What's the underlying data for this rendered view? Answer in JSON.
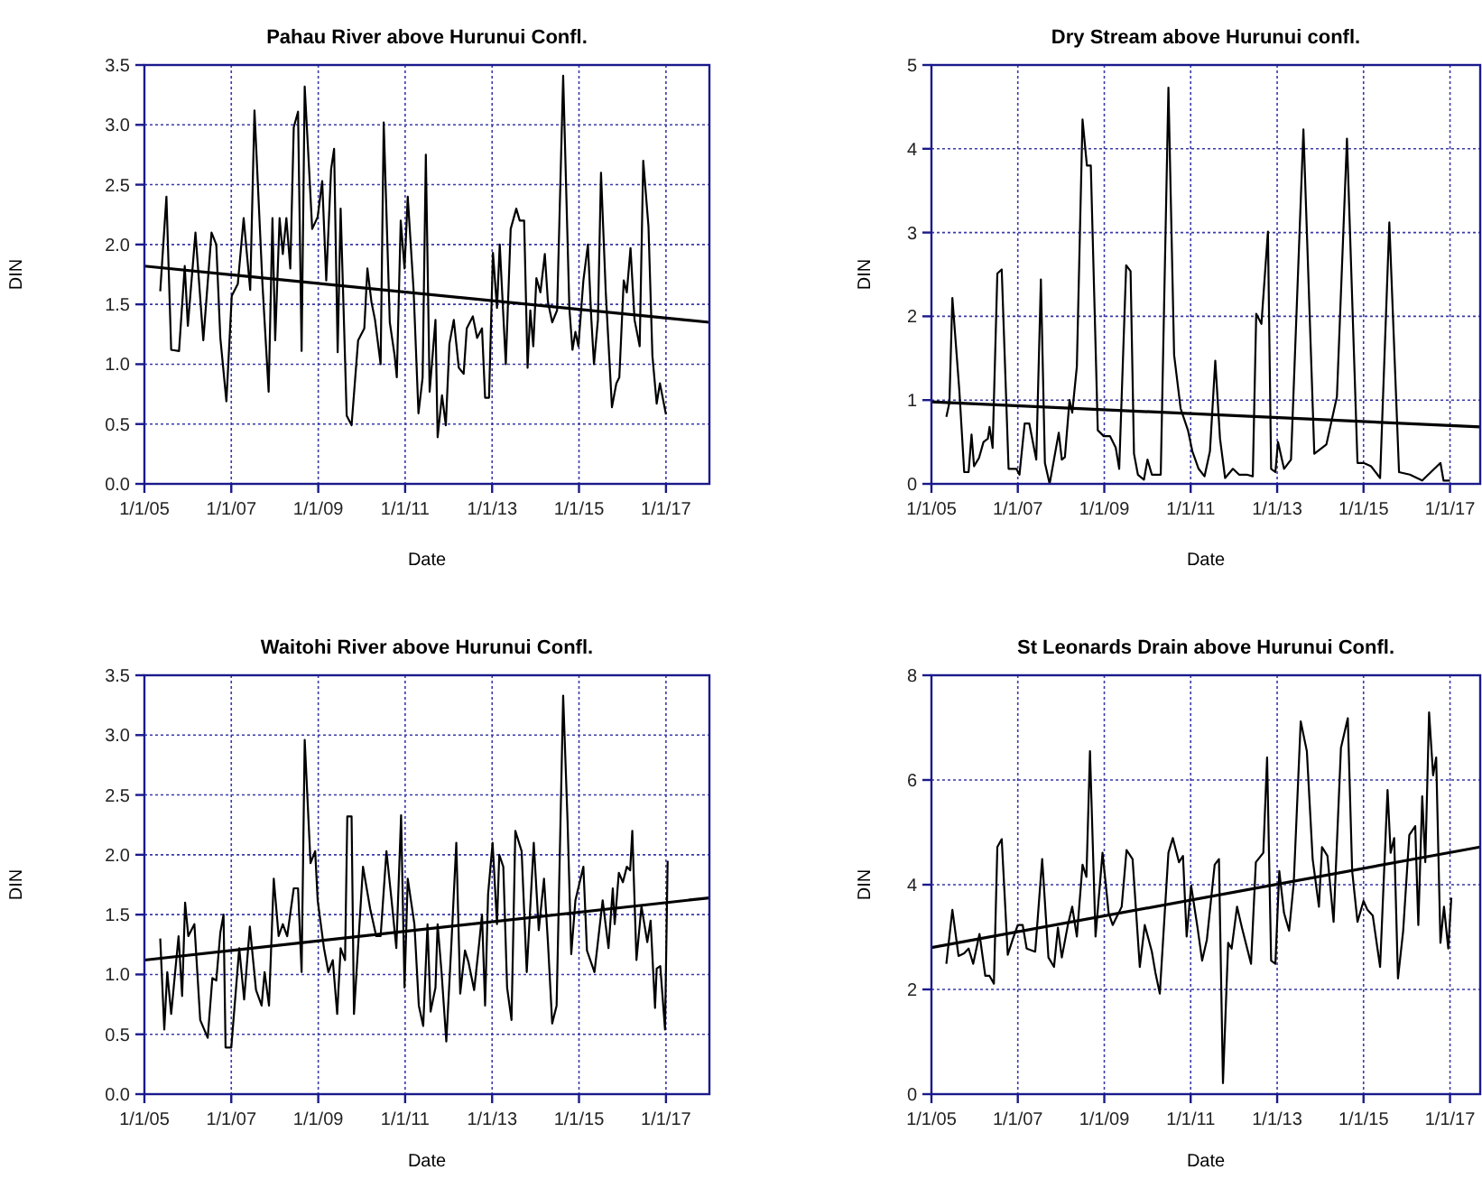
{
  "chart_data": [
    {
      "type": "line",
      "title": "Pahau River above Hurunui Confl.",
      "xlabel": "Date",
      "ylabel": "DIN",
      "xlim": [
        "2005-01-01",
        "2018-01-01"
      ],
      "ylim": [
        0,
        3.5
      ],
      "grid": true,
      "xticks": [
        {
          "value": "2005-01-01",
          "label": "1/1/05"
        },
        {
          "value": "2007-01-01",
          "label": "1/1/07"
        },
        {
          "value": "2009-01-01",
          "label": "1/1/09"
        },
        {
          "value": "2011-01-01",
          "label": "1/1/11"
        },
        {
          "value": "2013-01-01",
          "label": "1/1/13"
        },
        {
          "value": "2015-01-01",
          "label": "1/1/15"
        },
        {
          "value": "2017-01-01",
          "label": "1/1/17"
        }
      ],
      "yticks": [
        {
          "value": 0,
          "label": "0.0"
        },
        {
          "value": 0.5,
          "label": "0.5"
        },
        {
          "value": 1,
          "label": "1.0"
        },
        {
          "value": 1.5,
          "label": "1.5"
        },
        {
          "value": 2,
          "label": "2.0"
        },
        {
          "value": 2.5,
          "label": "2.5"
        },
        {
          "value": 3,
          "label": "3.0"
        },
        {
          "value": 3.5,
          "label": "3.5"
        }
      ],
      "series": [
        {
          "color": "#000000",
          "x": [
            "2005-05-14",
            "2005-07-05",
            "2005-08-14",
            "2005-10-19",
            "2005-12-06",
            "2006-01-01",
            "2006-03-06",
            "2006-05-11",
            "2006-07-19",
            "2006-08-28",
            "2006-10-01",
            "2006-11-21",
            "2007-01-05",
            "2007-02-25",
            "2007-04-15",
            "2007-06-09",
            "2007-07-15",
            "2007-09-20",
            "2007-11-11",
            "2007-12-13",
            "2008-01-05",
            "2008-02-11",
            "2008-03-09",
            "2008-04-08",
            "2008-05-11",
            "2008-06-09",
            "2008-07-15",
            "2008-08-14",
            "2008-09-09",
            "2008-10-08",
            "2008-11-11",
            "2008-12-27",
            "2009-02-03",
            "2009-03-09",
            "2009-04-19",
            "2009-05-14",
            "2009-06-13",
            "2009-07-08",
            "2009-08-28",
            "2009-10-08",
            "2009-12-02",
            "2010-01-23",
            "2010-02-18",
            "2010-03-24",
            "2010-04-23",
            "2010-06-09",
            "2010-07-05",
            "2010-08-25",
            "2010-10-05",
            "2010-10-23",
            "2010-11-25",
            "2010-12-27",
            "2011-01-23",
            "2011-03-13",
            "2011-04-23",
            "2011-05-28",
            "2011-06-24",
            "2011-07-26",
            "2011-09-13",
            "2011-10-01",
            "2011-11-07",
            "2011-12-09",
            "2012-01-08",
            "2012-02-14",
            "2012-03-27",
            "2012-05-07",
            "2012-06-02",
            "2012-07-23",
            "2012-08-28",
            "2012-10-08",
            "2012-11-03",
            "2012-12-06",
            "2013-01-08",
            "2013-02-11",
            "2013-03-06",
            "2013-04-26",
            "2013-06-06",
            "2013-07-23",
            "2013-08-21",
            "2013-09-27",
            "2013-10-26",
            "2013-11-18",
            "2013-12-13",
            "2014-01-08",
            "2014-02-11",
            "2014-03-20",
            "2014-04-15",
            "2014-05-21",
            "2014-07-01",
            "2014-08-21",
            "2014-10-12",
            "2014-11-07",
            "2014-12-02",
            "2014-12-27",
            "2015-02-07",
            "2015-03-17",
            "2015-04-15",
            "2015-05-07",
            "2015-06-09",
            "2015-07-05",
            "2015-08-14",
            "2015-10-05",
            "2015-11-11",
            "2015-12-06",
            "2016-01-12",
            "2016-02-07",
            "2016-03-09",
            "2016-04-12",
            "2016-05-25",
            "2016-06-24",
            "2016-08-07",
            "2016-09-09",
            "2016-10-15",
            "2016-11-11",
            "2017-01-01"
          ],
          "values": [
            1.61,
            2.4,
            1.12,
            1.11,
            1.82,
            1.32,
            2.1,
            1.2,
            2.1,
            2.0,
            1.22,
            0.69,
            1.57,
            1.67,
            2.22,
            1.62,
            3.12,
            1.67,
            0.77,
            2.22,
            1.2,
            2.22,
            1.92,
            2.22,
            1.8,
            2.98,
            3.11,
            1.11,
            3.32,
            2.78,
            2.13,
            2.23,
            2.53,
            1.7,
            2.63,
            2.8,
            1.1,
            2.3,
            0.57,
            0.49,
            1.2,
            1.3,
            1.8,
            1.52,
            1.37,
            1.0,
            3.02,
            1.35,
            1.07,
            0.89,
            2.2,
            1.8,
            2.4,
            1.62,
            0.59,
            0.89,
            2.75,
            0.77,
            1.37,
            0.39,
            0.74,
            0.49,
            1.17,
            1.37,
            0.97,
            0.92,
            1.3,
            1.4,
            1.22,
            1.3,
            0.72,
            0.72,
            1.93,
            1.47,
            2.0,
            1.0,
            2.13,
            2.3,
            2.2,
            2.2,
            0.97,
            1.45,
            1.15,
            1.72,
            1.6,
            1.92,
            1.52,
            1.35,
            1.45,
            3.41,
            1.47,
            1.12,
            1.27,
            1.15,
            1.7,
            2.0,
            1.37,
            1.0,
            1.37,
            2.6,
            1.6,
            0.64,
            0.84,
            0.89,
            1.7,
            1.6,
            1.97,
            1.37,
            1.15,
            2.7,
            2.15,
            1.07,
            0.67,
            0.84,
            0.58
          ]
        },
        {
          "type": "line",
          "color": "#000000",
          "x": [
            "2005-01-01",
            "2018-01-01"
          ],
          "values": [
            1.82,
            1.35
          ]
        }
      ]
    },
    {
      "type": "line",
      "title": "Dry Stream above Hurunui confl.",
      "xlabel": "Date",
      "ylabel": "DIN",
      "xlim": [
        "2005-01-01",
        "2017-09-13"
      ],
      "ylim": [
        0,
        5
      ],
      "grid": true,
      "xticks": [
        {
          "value": "2005-01-01",
          "label": "1/1/05"
        },
        {
          "value": "2007-01-01",
          "label": "1/1/07"
        },
        {
          "value": "2009-01-01",
          "label": "1/1/09"
        },
        {
          "value": "2011-01-01",
          "label": "1/1/11"
        },
        {
          "value": "2013-01-01",
          "label": "1/1/13"
        },
        {
          "value": "2015-01-01",
          "label": "1/1/15"
        },
        {
          "value": "2017-01-01",
          "label": "1/1/17"
        }
      ],
      "yticks": [
        0,
        1,
        2,
        3,
        4,
        5
      ],
      "series": [
        {
          "color": "#000000",
          "x": [
            "2005-05-07",
            "2005-06-02",
            "2005-06-27",
            "2005-08-25",
            "2005-10-05",
            "2005-11-11",
            "2005-12-06",
            "2005-12-27",
            "2006-02-07",
            "2006-03-17",
            "2006-04-23",
            "2006-05-07",
            "2006-06-02",
            "2006-07-12",
            "2006-08-18",
            "2006-10-15",
            "2006-12-20",
            "2007-01-15",
            "2007-02-28",
            "2007-04-08",
            "2007-06-06",
            "2007-07-15",
            "2007-08-18",
            "2007-09-27",
            "2007-12-13",
            "2008-01-08",
            "2008-02-03",
            "2008-03-13",
            "2008-04-05",
            "2008-05-14",
            "2008-07-01",
            "2008-08-07",
            "2008-09-09",
            "2008-11-07",
            "2008-12-27",
            "2009-02-18",
            "2009-04-08",
            "2009-05-07",
            "2009-07-05",
            "2009-08-11",
            "2009-09-09",
            "2009-10-12",
            "2009-12-02",
            "2010-01-01",
            "2010-02-07",
            "2010-03-27",
            "2010-04-23",
            "2010-06-27",
            "2010-08-14",
            "2010-10-08",
            "2010-12-09",
            "2011-01-15",
            "2011-03-09",
            "2011-04-28",
            "2011-06-13",
            "2011-07-28",
            "2011-09-06",
            "2011-10-19",
            "2011-12-24",
            "2012-02-14",
            "2012-04-19",
            "2012-06-09",
            "2012-07-08",
            "2012-08-21",
            "2012-10-15",
            "2012-11-11",
            "2012-12-17",
            "2013-01-08",
            "2013-02-28",
            "2013-04-28",
            "2013-08-11",
            "2013-11-11",
            "2014-02-21",
            "2014-05-21",
            "2014-08-14",
            "2014-11-11",
            "2015-01-01",
            "2015-03-06",
            "2015-05-21",
            "2015-08-07",
            "2015-10-28",
            "2016-01-28",
            "2016-05-11",
            "2016-10-12",
            "2016-11-07",
            "2017-01-01"
          ],
          "values": [
            0.8,
            0.97,
            2.22,
            1.11,
            0.14,
            0.14,
            0.59,
            0.21,
            0.31,
            0.5,
            0.54,
            0.68,
            0.43,
            2.51,
            2.56,
            0.18,
            0.18,
            0.11,
            0.72,
            0.72,
            0.29,
            2.44,
            0.25,
            0.0,
            0.61,
            0.29,
            0.32,
            1.0,
            0.85,
            1.4,
            4.35,
            3.8,
            3.8,
            0.64,
            0.57,
            0.57,
            0.43,
            0.18,
            2.61,
            2.54,
            0.36,
            0.11,
            0.05,
            0.29,
            0.11,
            0.11,
            0.11,
            4.73,
            1.54,
            0.9,
            0.64,
            0.39,
            0.18,
            0.09,
            0.39,
            1.47,
            0.54,
            0.07,
            0.18,
            0.11,
            0.11,
            0.09,
            2.03,
            1.91,
            3.01,
            0.18,
            0.14,
            0.5,
            0.18,
            0.29,
            4.23,
            0.36,
            0.47,
            1.04,
            4.12,
            0.25,
            0.25,
            0.21,
            0.07,
            3.12,
            0.14,
            0.11,
            0.04,
            0.25,
            0.04,
            0.04
          ]
        },
        {
          "type": "line",
          "color": "#000000",
          "x": [
            "2005-01-01",
            "2017-09-13"
          ],
          "values": [
            0.98,
            0.68
          ]
        }
      ]
    },
    {
      "type": "line",
      "title": "Waitohi River above Hurunui Confl.",
      "xlabel": "Date",
      "ylabel": "DIN",
      "xlim": [
        "2005-01-01",
        "2018-01-01"
      ],
      "ylim": [
        0,
        3.5
      ],
      "grid": true,
      "xticks": [
        {
          "value": "2005-01-01",
          "label": "1/1/05"
        },
        {
          "value": "2007-01-01",
          "label": "1/1/07"
        },
        {
          "value": "2009-01-01",
          "label": "1/1/09"
        },
        {
          "value": "2011-01-01",
          "label": "1/1/11"
        },
        {
          "value": "2013-01-01",
          "label": "1/1/13"
        },
        {
          "value": "2015-01-01",
          "label": "1/1/15"
        },
        {
          "value": "2017-01-01",
          "label": "1/1/17"
        }
      ],
      "yticks": [
        {
          "value": 0,
          "label": "0.0"
        },
        {
          "value": 0.5,
          "label": "0.5"
        },
        {
          "value": 1,
          "label": "1.0"
        },
        {
          "value": 1.5,
          "label": "1.5"
        },
        {
          "value": 2,
          "label": "2.0"
        },
        {
          "value": 2.5,
          "label": "2.5"
        },
        {
          "value": 3,
          "label": "3.0"
        },
        {
          "value": 3.5,
          "label": "3.5"
        }
      ],
      "series": [
        {
          "color": "#000000",
          "x": [
            "2005-05-14",
            "2005-06-17",
            "2005-07-12",
            "2005-08-14",
            "2005-10-15",
            "2005-11-14",
            "2005-12-09",
            "2006-01-05",
            "2006-02-25",
            "2006-04-15",
            "2006-06-17",
            "2006-07-26",
            "2006-08-28",
            "2006-10-01",
            "2006-10-28",
            "2006-11-14",
            "2007-01-01",
            "2007-03-09",
            "2007-04-19",
            "2007-06-06",
            "2007-07-28",
            "2007-09-13",
            "2007-10-08",
            "2007-11-14",
            "2007-12-24",
            "2008-02-03",
            "2008-03-09",
            "2008-04-15",
            "2008-06-09",
            "2008-07-15",
            "2008-08-14",
            "2008-09-09",
            "2008-10-28",
            "2008-12-06",
            "2008-12-27",
            "2009-02-18",
            "2009-03-27",
            "2009-05-03",
            "2009-06-09",
            "2009-07-08",
            "2009-08-14",
            "2009-09-02",
            "2009-10-08",
            "2009-10-28",
            "2010-01-12",
            "2010-03-13",
            "2010-05-03",
            "2010-06-09",
            "2010-07-28",
            "2010-09-09",
            "2010-10-19",
            "2010-11-28",
            "2010-12-27",
            "2011-01-23",
            "2011-03-20",
            "2011-04-26",
            "2011-06-02",
            "2011-07-08",
            "2011-08-03",
            "2011-09-13",
            "2011-10-01",
            "2011-11-03",
            "2011-12-13",
            "2012-01-23",
            "2012-03-06",
            "2012-04-08",
            "2012-05-18",
            "2012-06-17",
            "2012-08-03",
            "2012-09-13",
            "2012-10-08",
            "2012-11-03",
            "2012-11-28",
            "2013-01-05",
            "2013-02-11",
            "2013-03-02",
            "2013-04-05",
            "2013-05-07",
            "2013-06-13",
            "2013-07-15",
            "2013-09-06",
            "2013-10-19",
            "2013-12-17",
            "2014-01-28",
            "2014-03-13",
            "2014-04-15",
            "2014-05-21",
            "2014-06-27",
            "2014-08-21",
            "2014-09-27",
            "2014-10-28",
            "2014-12-02",
            "2015-02-07",
            "2015-03-09",
            "2015-05-11",
            "2015-07-19",
            "2015-09-06",
            "2015-10-12",
            "2015-10-28",
            "2015-12-02",
            "2016-01-05",
            "2016-02-07",
            "2016-03-06",
            "2016-03-24",
            "2016-04-28",
            "2016-06-09",
            "2016-07-28",
            "2016-08-25",
            "2016-10-01",
            "2016-10-15",
            "2016-11-14",
            "2016-12-24",
            "2017-01-15"
          ],
          "values": [
            1.3,
            0.54,
            1.02,
            0.67,
            1.32,
            0.82,
            1.6,
            1.32,
            1.42,
            0.62,
            0.47,
            0.97,
            0.95,
            1.35,
            1.5,
            0.39,
            0.39,
            1.22,
            0.79,
            1.4,
            0.87,
            0.74,
            1.02,
            0.74,
            1.8,
            1.32,
            1.42,
            1.32,
            1.72,
            1.72,
            1.02,
            2.96,
            1.93,
            2.03,
            1.62,
            1.22,
            1.02,
            1.12,
            0.67,
            1.22,
            1.12,
            2.32,
            2.32,
            0.67,
            1.9,
            1.55,
            1.32,
            1.32,
            2.03,
            1.62,
            1.22,
            2.33,
            0.89,
            1.8,
            1.42,
            0.74,
            0.57,
            1.42,
            0.69,
            0.89,
            1.42,
            1.02,
            0.44,
            1.22,
            2.1,
            0.84,
            1.2,
            1.1,
            0.87,
            1.25,
            1.5,
            0.74,
            1.67,
            2.1,
            1.42,
            2.0,
            1.9,
            0.89,
            0.62,
            2.2,
            2.03,
            1.02,
            2.1,
            1.37,
            1.8,
            1.27,
            0.59,
            0.74,
            3.33,
            2.28,
            1.17,
            1.62,
            1.9,
            1.2,
            1.02,
            1.62,
            1.22,
            1.72,
            1.42,
            1.85,
            1.77,
            1.9,
            1.87,
            2.2,
            1.12,
            1.57,
            1.27,
            1.45,
            0.72,
            1.05,
            1.07,
            0.54,
            1.95
          ]
        },
        {
          "type": "line",
          "color": "#000000",
          "x": [
            "2005-01-01",
            "2018-01-01"
          ],
          "values": [
            1.12,
            1.64
          ]
        }
      ]
    },
    {
      "type": "line",
      "title": "St Leonards Drain above Hurunui Confl.",
      "xlabel": "Date",
      "ylabel": "DIN",
      "xlim": [
        "2005-01-01",
        "2017-09-13"
      ],
      "ylim": [
        0,
        8
      ],
      "grid": true,
      "xticks": [
        {
          "value": "2005-01-01",
          "label": "1/1/05"
        },
        {
          "value": "2007-01-01",
          "label": "1/1/07"
        },
        {
          "value": "2009-01-01",
          "label": "1/1/09"
        },
        {
          "value": "2011-01-01",
          "label": "1/1/11"
        },
        {
          "value": "2013-01-01",
          "label": "1/1/13"
        },
        {
          "value": "2015-01-01",
          "label": "1/1/15"
        },
        {
          "value": "2017-01-01",
          "label": "1/1/17"
        }
      ],
      "yticks": [
        0,
        2,
        4,
        6,
        8
      ],
      "series": [
        {
          "color": "#000000",
          "x": [
            "2005-05-07",
            "2005-06-27",
            "2005-08-18",
            "2005-10-05",
            "2005-11-11",
            "2005-12-20",
            "2006-02-11",
            "2006-04-01",
            "2006-05-07",
            "2006-06-13",
            "2006-07-12",
            "2006-08-18",
            "2006-10-08",
            "2006-11-18",
            "2007-01-01",
            "2007-02-11",
            "2007-03-17",
            "2007-05-28",
            "2007-07-26",
            "2007-09-17",
            "2007-11-03",
            "2007-12-06",
            "2008-01-08",
            "2008-02-28",
            "2008-04-05",
            "2008-05-14",
            "2008-07-01",
            "2008-08-03",
            "2008-09-02",
            "2008-10-19",
            "2008-12-17",
            "2009-02-07",
            "2009-03-13",
            "2009-05-28",
            "2009-07-08",
            "2009-08-28",
            "2009-10-28",
            "2009-12-09",
            "2010-02-07",
            "2010-03-09",
            "2010-04-15",
            "2010-06-27",
            "2010-08-03",
            "2010-09-24",
            "2010-10-28",
            "2010-11-28",
            "2011-01-05",
            "2011-02-28",
            "2011-04-08",
            "2011-05-18",
            "2011-07-23",
            "2011-08-28",
            "2011-10-01",
            "2011-11-14",
            "2011-12-13",
            "2012-01-28",
            "2012-03-09",
            "2012-05-25",
            "2012-07-05",
            "2012-09-06",
            "2012-10-08",
            "2012-11-11",
            "2012-12-17",
            "2013-01-19",
            "2013-02-28",
            "2013-04-12",
            "2013-05-21",
            "2013-07-19",
            "2013-09-09",
            "2013-10-28",
            "2013-12-20",
            "2014-01-15",
            "2014-03-02",
            "2014-04-23",
            "2014-06-24",
            "2014-08-21",
            "2014-09-27",
            "2014-11-11",
            "2015-01-01",
            "2015-02-03",
            "2015-03-20",
            "2015-05-21",
            "2015-07-23",
            "2015-08-18",
            "2015-09-17",
            "2015-10-19",
            "2015-12-02",
            "2016-01-23",
            "2016-03-13",
            "2016-04-08",
            "2016-05-11",
            "2016-06-06",
            "2016-07-08",
            "2016-08-11",
            "2016-09-06",
            "2016-10-12",
            "2016-11-11",
            "2016-12-17",
            "2017-01-12"
          ],
          "values": [
            2.49,
            3.52,
            2.64,
            2.69,
            2.78,
            2.49,
            3.06,
            2.26,
            2.26,
            2.11,
            4.72,
            4.87,
            2.66,
            2.95,
            3.23,
            3.23,
            2.78,
            2.72,
            4.49,
            2.61,
            2.43,
            3.18,
            2.61,
            3.23,
            3.58,
            3.01,
            4.38,
            4.15,
            6.55,
            3.01,
            4.61,
            3.46,
            3.23,
            3.58,
            4.66,
            4.49,
            2.43,
            3.23,
            2.72,
            2.32,
            1.92,
            4.61,
            4.89,
            4.43,
            4.55,
            3.01,
            3.98,
            3.18,
            2.55,
            2.95,
            4.38,
            4.49,
            0.21,
            2.89,
            2.78,
            3.58,
            3.18,
            2.49,
            4.43,
            4.61,
            6.43,
            2.55,
            2.49,
            4.26,
            3.46,
            3.12,
            4.03,
            7.12,
            6.55,
            4.49,
            3.58,
            4.72,
            4.55,
            3.29,
            6.61,
            7.18,
            4.26,
            3.29,
            3.69,
            3.52,
            3.41,
            2.43,
            5.81,
            4.61,
            4.89,
            2.21,
            3.12,
            4.95,
            5.12,
            3.23,
            5.69,
            4.43,
            7.29,
            6.09,
            6.43,
            2.89,
            3.58,
            2.78,
            3.75
          ]
        },
        {
          "type": "line",
          "color": "#000000",
          "x": [
            "2005-01-01",
            "2017-09-13"
          ],
          "values": [
            2.8,
            4.72
          ]
        }
      ]
    }
  ]
}
